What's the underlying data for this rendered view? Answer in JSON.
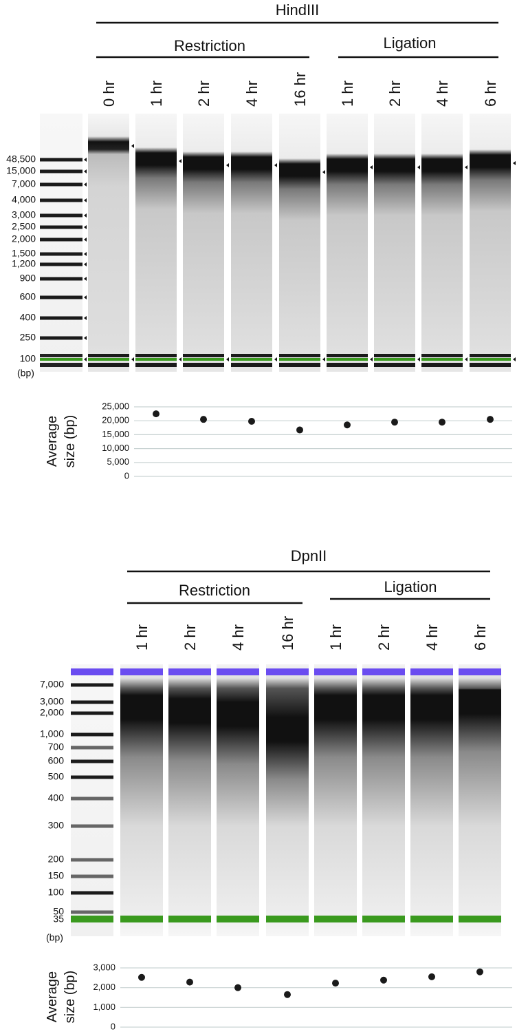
{
  "gels": [
    {
      "title": "HindIII",
      "groups": [
        "Restriction",
        "Ligation"
      ],
      "lanes": [
        "0 hr",
        "1 hr",
        "2 hr",
        "4 hr",
        "16 hr",
        "1 hr",
        "2 hr",
        "4 hr",
        "6 hr"
      ],
      "ladder": [
        "48,500",
        "15,000",
        "7,000",
        "4,000",
        "3,000",
        "2,500",
        "2,000",
        "1,500",
        "1,200",
        "900",
        "600",
        "400",
        "250",
        "100"
      ],
      "unit": "(bp)"
    },
    {
      "title": "DpnII",
      "groups": [
        "Restriction",
        "Ligation"
      ],
      "lanes": [
        "1 hr",
        "2 hr",
        "4 hr",
        "16 hr",
        "1 hr",
        "2 hr",
        "4 hr",
        "6 hr"
      ],
      "ladder": [
        "7,000",
        "3,000",
        "2,000",
        "1,000",
        "700",
        "600",
        "500",
        "400",
        "300",
        "200",
        "150",
        "100",
        "50",
        "35"
      ],
      "unit": "(bp)"
    }
  ],
  "chart_data": [
    {
      "type": "scatter",
      "ylabel": [
        "Average",
        "size (bp)"
      ],
      "values": [
        22500,
        20500,
        19800,
        16700,
        18500,
        19500,
        19500,
        20500
      ],
      "color": "#1a1a1a",
      "ylim": [
        0,
        25000
      ],
      "yticks": [
        0,
        {
          "value": 5000,
          "label": "5,000"
        },
        {
          "value": 10000,
          "label": "10,000"
        },
        {
          "value": 15000,
          "label": "15,000"
        },
        {
          "value": 20000,
          "label": "20,000"
        },
        {
          "value": 25000,
          "label": "25,000"
        }
      ],
      "grid": true
    },
    {
      "type": "scatter",
      "ylabel": [
        "Average",
        "size (bp)"
      ],
      "values": [
        2520,
        2280,
        2000,
        1650,
        2230,
        2380,
        2550,
        2800
      ],
      "color": "#1a1a1a",
      "ylim": [
        0,
        3000
      ],
      "yticks": [
        0,
        {
          "value": 1000,
          "label": "1,000"
        },
        {
          "value": 2000,
          "label": "2,000"
        },
        {
          "value": 3000,
          "label": "3,000"
        }
      ],
      "grid": true
    }
  ]
}
